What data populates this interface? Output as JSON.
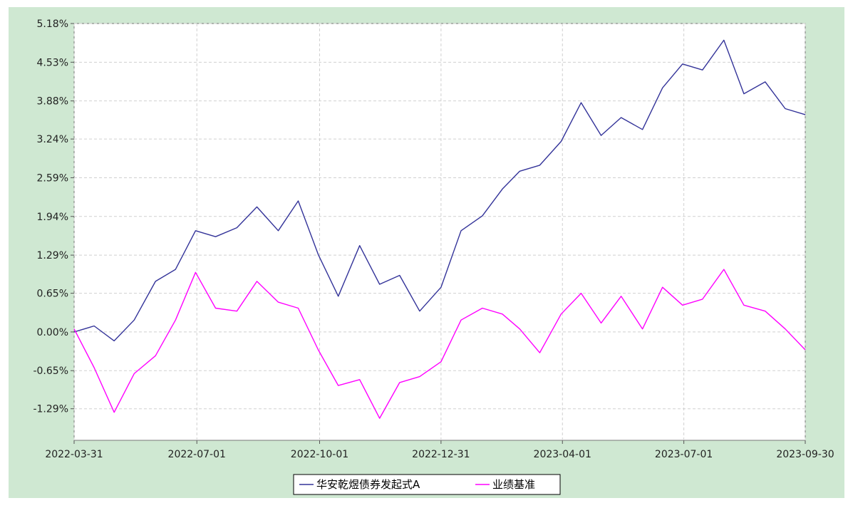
{
  "chart_data": {
    "type": "line",
    "title": "",
    "xlabel": "",
    "ylabel": "",
    "x_dates": [
      "2022-03-31",
      "2022-04-15",
      "2022-04-30",
      "2022-05-15",
      "2022-05-31",
      "2022-06-15",
      "2022-06-30",
      "2022-07-15",
      "2022-07-31",
      "2022-08-15",
      "2022-08-31",
      "2022-09-15",
      "2022-09-30",
      "2022-10-15",
      "2022-10-31",
      "2022-11-15",
      "2022-11-30",
      "2022-12-15",
      "2022-12-31",
      "2023-01-15",
      "2023-01-31",
      "2023-02-15",
      "2023-02-28",
      "2023-03-15",
      "2023-03-31",
      "2023-04-15",
      "2023-04-30",
      "2023-05-15",
      "2023-05-31",
      "2023-06-15",
      "2023-06-30",
      "2023-07-15",
      "2023-07-31",
      "2023-08-15",
      "2023-08-31",
      "2023-09-15",
      "2023-09-30"
    ],
    "x_ticks": [
      "2022-03-31",
      "2022-07-01",
      "2022-10-01",
      "2022-12-31",
      "2023-04-01",
      "2023-07-01",
      "2023-09-30"
    ],
    "y_ticks": [
      "5.18%",
      "4.53%",
      "3.88%",
      "3.24%",
      "2.59%",
      "1.94%",
      "1.29%",
      "0.65%",
      "0.00%",
      "-0.65%",
      "-1.29%"
    ],
    "y_tick_values": [
      5.18,
      4.53,
      3.88,
      3.24,
      2.59,
      1.94,
      1.29,
      0.65,
      0.0,
      -0.65,
      -1.29
    ],
    "ylim": [
      -1.82,
      5.18
    ],
    "grid": true,
    "legend_position": "bottom-center",
    "series": [
      {
        "name": "华安乾煜债券发起式A",
        "color": "#333399",
        "values": [
          0.0,
          0.1,
          -0.15,
          0.2,
          0.85,
          1.05,
          1.7,
          1.6,
          1.75,
          2.1,
          1.7,
          2.2,
          1.3,
          0.6,
          1.45,
          0.8,
          0.95,
          0.35,
          0.75,
          1.7,
          1.95,
          2.4,
          2.7,
          2.8,
          3.2,
          3.85,
          3.3,
          3.6,
          3.4,
          4.1,
          4.5,
          4.4,
          4.9,
          4.0,
          4.2,
          3.75,
          3.65
        ]
      },
      {
        "name": "业绩基准",
        "color": "#ff00ff",
        "values": [
          0.05,
          -0.6,
          -1.35,
          -0.7,
          -0.4,
          0.2,
          1.0,
          0.4,
          0.35,
          0.85,
          0.5,
          0.4,
          -0.3,
          -0.9,
          -0.8,
          -1.45,
          -0.85,
          -0.75,
          -0.5,
          0.2,
          0.4,
          0.3,
          0.05,
          -0.35,
          0.3,
          0.65,
          0.15,
          0.6,
          0.05,
          0.75,
          0.45,
          0.55,
          1.05,
          0.45,
          0.35,
          0.05,
          -0.3
        ]
      }
    ]
  }
}
